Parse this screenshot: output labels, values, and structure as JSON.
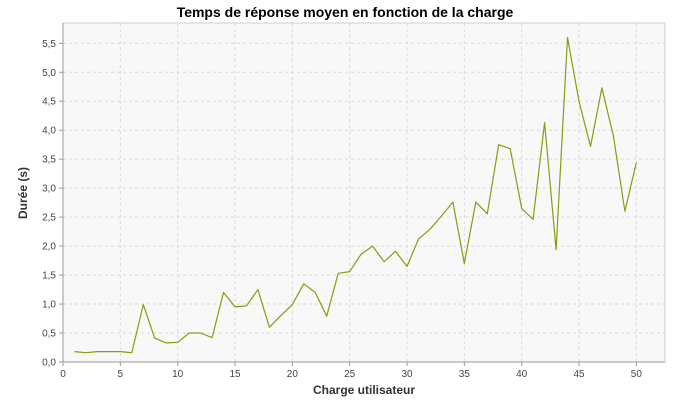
{
  "chart_data": {
    "type": "line",
    "title": "Temps de réponse moyen en fonction de la charge",
    "xlabel": "Charge utilisateur",
    "ylabel": "Durée (s)",
    "xlim": [
      0,
      52.5
    ],
    "ylim": [
      0,
      5.85
    ],
    "x_ticks": [
      0,
      5,
      10,
      15,
      20,
      25,
      30,
      35,
      40,
      45,
      50
    ],
    "x_tick_labels": [
      "0",
      "5",
      "10",
      "15",
      "20",
      "25",
      "30",
      "35",
      "40",
      "45",
      "50"
    ],
    "y_ticks": [
      0,
      0.5,
      1,
      1.5,
      2,
      2.5,
      3,
      3.5,
      4,
      4.5,
      5,
      5.5
    ],
    "y_tick_labels": [
      "0,0",
      "0,5",
      "1,0",
      "1,5",
      "2,0",
      "2,5",
      "3,0",
      "3,5",
      "4,0",
      "4,5",
      "5,0",
      "5,5"
    ],
    "grid": true,
    "legend": "none",
    "colors": {
      "line": "#8c9a0f",
      "plot_bg": "#f8f8f8",
      "grid": "#d9d9d9",
      "axis": "#999999"
    },
    "series": [
      {
        "x": [
          1,
          2,
          3,
          4,
          5,
          6,
          7,
          8,
          9,
          10,
          11,
          12,
          13,
          14,
          15,
          16,
          17,
          18,
          19,
          20,
          21,
          22,
          23,
          24,
          25,
          26,
          27,
          28,
          29,
          30,
          31,
          32,
          33,
          34,
          35,
          36,
          37,
          38,
          39,
          40,
          41,
          42,
          43,
          44,
          45,
          46,
          47,
          48,
          49,
          50
        ],
        "values": [
          0.18,
          0.16,
          0.18,
          0.18,
          0.18,
          0.16,
          0.99,
          0.41,
          0.33,
          0.34,
          0.5,
          0.5,
          0.42,
          1.2,
          0.95,
          0.97,
          1.25,
          0.6,
          0.8,
          0.99,
          1.35,
          1.2,
          0.79,
          1.53,
          1.56,
          1.86,
          2.0,
          1.73,
          1.91,
          1.65,
          2.12,
          2.29,
          2.52,
          2.76,
          1.7,
          2.76,
          2.56,
          3.75,
          3.68,
          2.65,
          2.46,
          4.13,
          1.94,
          5.6,
          4.5,
          3.72,
          4.73,
          3.9,
          2.6,
          3.44
        ]
      }
    ]
  }
}
